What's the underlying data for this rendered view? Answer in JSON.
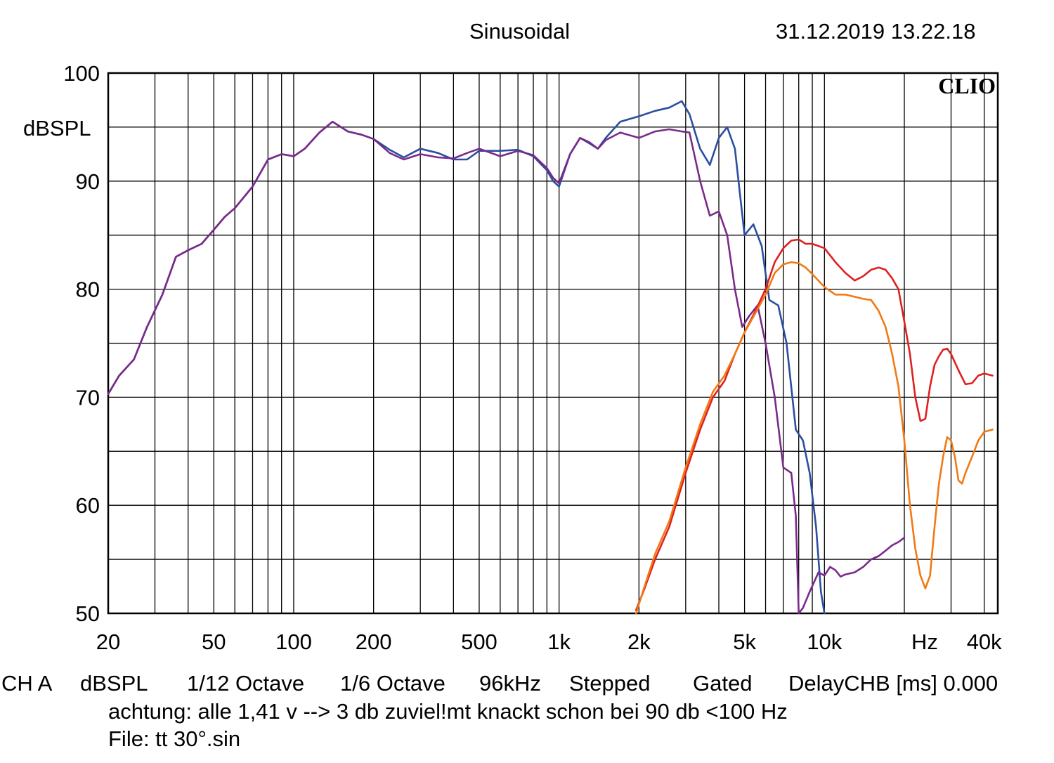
{
  "header": {
    "title": "Sinusoidal",
    "timestamp": "31.12.2019 13.22.18"
  },
  "footer": {
    "channel": "CH A",
    "unit": "dBSPL",
    "resolution": "1/12 Octave",
    "smoothing": "1/6 Octave",
    "sample_rate": "96kHz",
    "mode": "Stepped",
    "window": "Gated",
    "delay": "DelayCHB [ms] 0.000",
    "note": "achtung: alle 1,41 v --> 3 db zuviel!mt knackt schon bei 90 db <100 Hz",
    "file": "File: tt 30°.sin"
  },
  "chart_data": {
    "type": "line",
    "brand": "CLIO",
    "ylabel": "dBSPL",
    "xunit": "Hz",
    "x_scale": "log",
    "xlim": [
      20,
      45000
    ],
    "ylim": [
      50,
      100
    ],
    "grid": true,
    "y_ticks": [
      {
        "value": 100,
        "label": "100"
      },
      {
        "value": 90,
        "label": "90"
      },
      {
        "value": 80,
        "label": "80"
      },
      {
        "value": 70,
        "label": "70"
      },
      {
        "value": 60,
        "label": "60"
      },
      {
        "value": 50,
        "label": "50"
      }
    ],
    "x_ticks": [
      {
        "value": 20,
        "label": "20"
      },
      {
        "value": 50,
        "label": "50"
      },
      {
        "value": 100,
        "label": "100"
      },
      {
        "value": 200,
        "label": "200"
      },
      {
        "value": 500,
        "label": "500"
      },
      {
        "value": 1000,
        "label": "1k"
      },
      {
        "value": 2000,
        "label": "2k"
      },
      {
        "value": 5000,
        "label": "5k"
      },
      {
        "value": 10000,
        "label": "10k"
      },
      {
        "value": 40000,
        "label": "40k"
      }
    ],
    "series": [
      {
        "color": "#2a4fa0",
        "points": [
          [
            20,
            70.3
          ],
          [
            22,
            72
          ],
          [
            25,
            73.5
          ],
          [
            28,
            76.5
          ],
          [
            32,
            79.5
          ],
          [
            36,
            83
          ],
          [
            40,
            83.6
          ],
          [
            45,
            84.2
          ],
          [
            50,
            85.5
          ],
          [
            55,
            86.7
          ],
          [
            60,
            87.5
          ],
          [
            70,
            89.5
          ],
          [
            80,
            92
          ],
          [
            90,
            92.5
          ],
          [
            100,
            92.3
          ],
          [
            110,
            93
          ],
          [
            125,
            94.5
          ],
          [
            140,
            95.5
          ],
          [
            160,
            94.6
          ],
          [
            180,
            94.3
          ],
          [
            200,
            93.9
          ],
          [
            230,
            92.9
          ],
          [
            260,
            92.2
          ],
          [
            300,
            93
          ],
          [
            350,
            92.6
          ],
          [
            400,
            92
          ],
          [
            450,
            92
          ],
          [
            500,
            92.8
          ],
          [
            600,
            92.8
          ],
          [
            700,
            92.9
          ],
          [
            800,
            92.3
          ],
          [
            900,
            91
          ],
          [
            950,
            90
          ],
          [
            1000,
            89.5
          ],
          [
            1100,
            92.5
          ],
          [
            1200,
            94
          ],
          [
            1300,
            93.5
          ],
          [
            1400,
            93
          ],
          [
            1500,
            94
          ],
          [
            1700,
            95.5
          ],
          [
            2000,
            96
          ],
          [
            2300,
            96.5
          ],
          [
            2600,
            96.8
          ],
          [
            2900,
            97.4
          ],
          [
            3100,
            96.2
          ],
          [
            3400,
            93
          ],
          [
            3700,
            91.5
          ],
          [
            4000,
            94
          ],
          [
            4300,
            95
          ],
          [
            4600,
            93
          ],
          [
            5000,
            85
          ],
          [
            5400,
            86
          ],
          [
            5800,
            84
          ],
          [
            6200,
            79
          ],
          [
            6700,
            78.5
          ],
          [
            7200,
            75
          ],
          [
            7800,
            67
          ],
          [
            8300,
            66
          ],
          [
            8800,
            63
          ],
          [
            9300,
            58
          ],
          [
            9700,
            52
          ],
          [
            10000,
            50
          ]
        ]
      },
      {
        "color": "#7a2a8a",
        "points": [
          [
            20,
            70.3
          ],
          [
            22,
            72
          ],
          [
            25,
            73.5
          ],
          [
            28,
            76.5
          ],
          [
            32,
            79.5
          ],
          [
            36,
            83
          ],
          [
            40,
            83.6
          ],
          [
            45,
            84.2
          ],
          [
            50,
            85.5
          ],
          [
            55,
            86.7
          ],
          [
            60,
            87.5
          ],
          [
            70,
            89.5
          ],
          [
            80,
            92
          ],
          [
            90,
            92.5
          ],
          [
            100,
            92.3
          ],
          [
            110,
            93
          ],
          [
            125,
            94.5
          ],
          [
            140,
            95.5
          ],
          [
            160,
            94.6
          ],
          [
            180,
            94.3
          ],
          [
            200,
            93.9
          ],
          [
            230,
            92.6
          ],
          [
            260,
            92
          ],
          [
            300,
            92.5
          ],
          [
            350,
            92.2
          ],
          [
            400,
            92.1
          ],
          [
            450,
            92.6
          ],
          [
            500,
            93
          ],
          [
            600,
            92.3
          ],
          [
            700,
            92.8
          ],
          [
            800,
            92.4
          ],
          [
            900,
            91.2
          ],
          [
            950,
            90.3
          ],
          [
            1000,
            89.8
          ],
          [
            1100,
            92.5
          ],
          [
            1200,
            94
          ],
          [
            1300,
            93.6
          ],
          [
            1400,
            93
          ],
          [
            1500,
            93.8
          ],
          [
            1700,
            94.5
          ],
          [
            2000,
            94
          ],
          [
            2300,
            94.6
          ],
          [
            2600,
            94.8
          ],
          [
            2900,
            94.6
          ],
          [
            3100,
            94.5
          ],
          [
            3400,
            90
          ],
          [
            3700,
            86.8
          ],
          [
            4000,
            87.2
          ],
          [
            4300,
            85
          ],
          [
            4600,
            80
          ],
          [
            4900,
            76.5
          ],
          [
            5200,
            77.5
          ],
          [
            5600,
            78.5
          ],
          [
            6000,
            75
          ],
          [
            6500,
            70
          ],
          [
            7000,
            63.5
          ],
          [
            7500,
            63
          ],
          [
            7800,
            59
          ],
          [
            8000,
            50
          ],
          [
            8300,
            50.5
          ],
          [
            8800,
            52
          ],
          [
            9500,
            53.8
          ],
          [
            10000,
            53.5
          ],
          [
            10500,
            54.3
          ],
          [
            11000,
            54
          ],
          [
            11500,
            53.4
          ],
          [
            12000,
            53.6
          ],
          [
            13000,
            53.8
          ],
          [
            14000,
            54.3
          ],
          [
            15000,
            55
          ],
          [
            16000,
            55.3
          ],
          [
            17000,
            55.8
          ],
          [
            18000,
            56.3
          ],
          [
            19000,
            56.6
          ],
          [
            20000,
            57
          ]
        ]
      },
      {
        "color": "#e02020",
        "points": [
          [
            1950,
            50.3
          ],
          [
            2100,
            52.3
          ],
          [
            2300,
            55
          ],
          [
            2600,
            58
          ],
          [
            3000,
            63
          ],
          [
            3400,
            67
          ],
          [
            3800,
            70
          ],
          [
            4200,
            71.5
          ],
          [
            4600,
            74
          ],
          [
            5000,
            76
          ],
          [
            5500,
            78
          ],
          [
            6000,
            80
          ],
          [
            6500,
            82.5
          ],
          [
            7000,
            83.8
          ],
          [
            7500,
            84.5
          ],
          [
            8000,
            84.6
          ],
          [
            8500,
            84.2
          ],
          [
            9000,
            84.2
          ],
          [
            10000,
            83.8
          ],
          [
            11000,
            82.5
          ],
          [
            12000,
            81.5
          ],
          [
            13000,
            80.8
          ],
          [
            14000,
            81.2
          ],
          [
            15000,
            81.8
          ],
          [
            16000,
            82
          ],
          [
            17000,
            81.8
          ],
          [
            18000,
            81
          ],
          [
            19000,
            80
          ],
          [
            20000,
            77
          ],
          [
            21000,
            74
          ],
          [
            22000,
            70
          ],
          [
            23000,
            67.8
          ],
          [
            24000,
            68
          ],
          [
            25000,
            71
          ],
          [
            26000,
            73
          ],
          [
            27000,
            73.8
          ],
          [
            28000,
            74.4
          ],
          [
            29000,
            74.5
          ],
          [
            30000,
            74
          ],
          [
            32000,
            72.5
          ],
          [
            34000,
            71.2
          ],
          [
            36000,
            71.3
          ],
          [
            38000,
            72
          ],
          [
            40000,
            72.2
          ],
          [
            43000,
            72
          ]
        ]
      },
      {
        "color": "#f07a14",
        "points": [
          [
            1950,
            50
          ],
          [
            2100,
            52.5
          ],
          [
            2300,
            55.5
          ],
          [
            2600,
            58.5
          ],
          [
            3000,
            63.5
          ],
          [
            3400,
            67.5
          ],
          [
            3800,
            70.5
          ],
          [
            4200,
            72
          ],
          [
            4600,
            74
          ],
          [
            5000,
            76
          ],
          [
            5500,
            77.8
          ],
          [
            6000,
            79.5
          ],
          [
            6500,
            81.5
          ],
          [
            7000,
            82.3
          ],
          [
            7500,
            82.5
          ],
          [
            8000,
            82.4
          ],
          [
            8500,
            82
          ],
          [
            9000,
            81.4
          ],
          [
            10000,
            80.2
          ],
          [
            11000,
            79.5
          ],
          [
            12000,
            79.5
          ],
          [
            13000,
            79.3
          ],
          [
            14000,
            79.1
          ],
          [
            15000,
            79
          ],
          [
            16000,
            78
          ],
          [
            17000,
            76.5
          ],
          [
            18000,
            74
          ],
          [
            19000,
            71
          ],
          [
            20000,
            66
          ],
          [
            21000,
            60
          ],
          [
            22000,
            56
          ],
          [
            23000,
            53.5
          ],
          [
            24000,
            52.3
          ],
          [
            25000,
            53.5
          ],
          [
            26000,
            58
          ],
          [
            27000,
            62
          ],
          [
            28000,
            64.5
          ],
          [
            29000,
            66.3
          ],
          [
            30000,
            66
          ],
          [
            31000,
            64.5
          ],
          [
            32000,
            62.3
          ],
          [
            33000,
            62
          ],
          [
            34000,
            63
          ],
          [
            36000,
            64.5
          ],
          [
            38000,
            66
          ],
          [
            40000,
            66.8
          ],
          [
            43000,
            67
          ]
        ]
      }
    ]
  }
}
